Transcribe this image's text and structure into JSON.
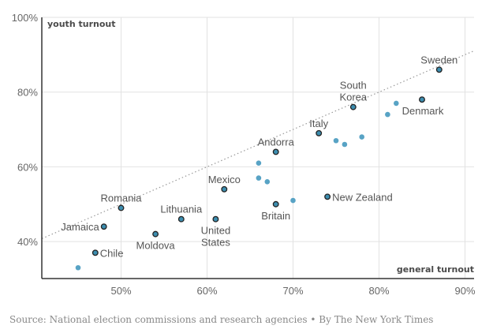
{
  "chart_data": {
    "type": "scatter",
    "title": "",
    "xlabel": "general turnout",
    "ylabel": "youth turnout",
    "xlim": [
      40.8,
      91
    ],
    "ylim": [
      30,
      100
    ],
    "x_ticks": [
      50,
      60,
      70,
      80,
      90
    ],
    "y_ticks": [
      40,
      60,
      80,
      100
    ],
    "x_tick_labels": [
      "50%",
      "60%",
      "70%",
      "80%",
      "90%"
    ],
    "y_tick_labels": [
      "40%",
      "60%",
      "80%",
      "100%"
    ],
    "grid": true,
    "reference_line": {
      "type": "dotted",
      "description": "youth turnout equals general turnout",
      "from": [
        40.8,
        40.8
      ],
      "to": [
        91,
        91
      ]
    },
    "colors": {
      "highlighted": "#3d8eb0",
      "highlighted_stroke": "#222222",
      "other": "#58a3c5",
      "grid": "#e2e2e2",
      "reference": "#999999"
    },
    "labeled_points": [
      {
        "name": "Sweden",
        "x": 87,
        "y": 86,
        "label_lines": [
          "Sweden"
        ],
        "label_pos": "above"
      },
      {
        "name": "South Korea",
        "x": 77,
        "y": 76,
        "label_lines": [
          "South",
          "Korea"
        ],
        "label_pos": "above"
      },
      {
        "name": "Denmark",
        "x": 85,
        "y": 78,
        "label_lines": [
          "Denmark"
        ],
        "label_pos": "below-right"
      },
      {
        "name": "Italy",
        "x": 73,
        "y": 69,
        "label_lines": [
          "Italy"
        ],
        "label_pos": "above"
      },
      {
        "name": "Andorra",
        "x": 68,
        "y": 64,
        "label_lines": [
          "Andorra"
        ],
        "label_pos": "above"
      },
      {
        "name": "Mexico",
        "x": 62,
        "y": 54,
        "label_lines": [
          "Mexico"
        ],
        "label_pos": "above"
      },
      {
        "name": "Romania",
        "x": 50,
        "y": 49,
        "label_lines": [
          "Romania"
        ],
        "label_pos": "above"
      },
      {
        "name": "Lithuania",
        "x": 57,
        "y": 46,
        "label_lines": [
          "Lithuania"
        ],
        "label_pos": "above"
      },
      {
        "name": "United States",
        "x": 61,
        "y": 46,
        "label_lines": [
          "United",
          "States"
        ],
        "label_pos": "below"
      },
      {
        "name": "Jamaica",
        "x": 48,
        "y": 44,
        "label_lines": [
          "Jamaica"
        ],
        "label_pos": "left"
      },
      {
        "name": "Moldova",
        "x": 54,
        "y": 42,
        "label_lines": [
          "Moldova"
        ],
        "label_pos": "below"
      },
      {
        "name": "Chile",
        "x": 47,
        "y": 37,
        "label_lines": [
          "Chile"
        ],
        "label_pos": "right"
      },
      {
        "name": "New Zealand",
        "x": 74,
        "y": 52,
        "label_lines": [
          "New Zealand"
        ],
        "label_pos": "right"
      },
      {
        "name": "Britain",
        "x": 68,
        "y": 50,
        "label_lines": [
          "Britain"
        ],
        "label_pos": "below"
      }
    ],
    "other_points": [
      {
        "x": 45,
        "y": 33
      },
      {
        "x": 66,
        "y": 61
      },
      {
        "x": 66,
        "y": 57
      },
      {
        "x": 67,
        "y": 56
      },
      {
        "x": 70,
        "y": 51
      },
      {
        "x": 75,
        "y": 67
      },
      {
        "x": 76,
        "y": 66
      },
      {
        "x": 78,
        "y": 68
      },
      {
        "x": 81,
        "y": 74
      },
      {
        "x": 82,
        "y": 77
      }
    ]
  },
  "source": "Source: National election commissions and research agencies • By The New York Times"
}
